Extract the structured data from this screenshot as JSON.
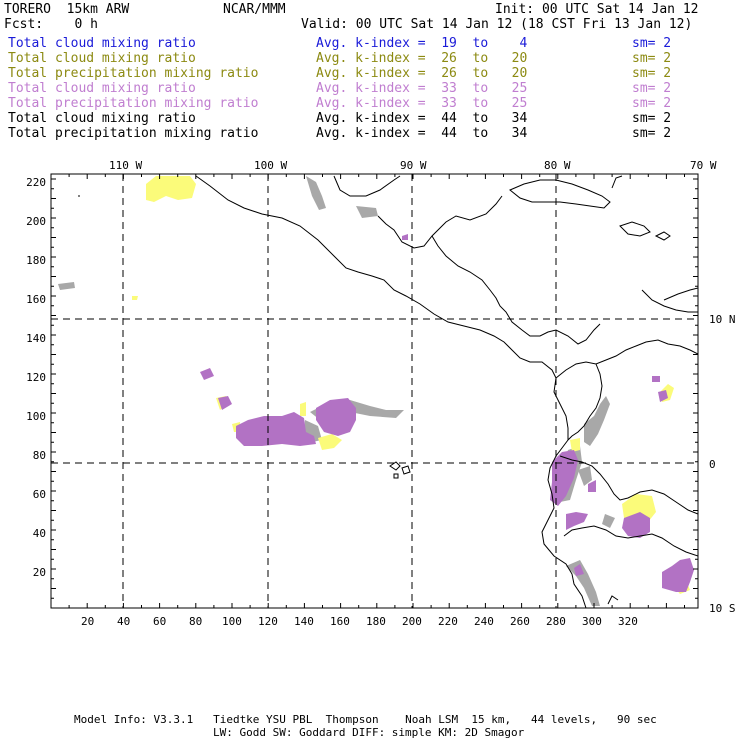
{
  "header": {
    "model": "TORERO  15km ARW",
    "center": "NCAR/MMM",
    "init": "Init: 00 UTC Sat 14 Jan 12",
    "fcst": "Fcst:    0 h",
    "valid": "Valid: 00 UTC Sat 14 Jan 12 (18 CST Fri 13 Jan 12)"
  },
  "legend": [
    {
      "name": "Total cloud mixing ratio",
      "kindex": "Avg. k-index =  19  to    4",
      "sm": "sm= 2",
      "color": "#1a1ad8"
    },
    {
      "name": "Total cloud mixing ratio",
      "kindex": "Avg. k-index =  26  to   20",
      "sm": "sm= 2",
      "color": "#8c8a12"
    },
    {
      "name": "Total precipitation mixing ratio",
      "kindex": "Avg. k-index =  26  to   20",
      "sm": "sm= 2",
      "color": "#8c8a12"
    },
    {
      "name": "Total cloud mixing ratio",
      "kindex": "Avg. k-index =  33  to   25",
      "sm": "sm= 2",
      "color": "#c07ed0"
    },
    {
      "name": "Total precipitation mixing ratio",
      "kindex": "Avg. k-index =  33  to   25",
      "sm": "sm= 2",
      "color": "#c07ed0"
    },
    {
      "name": "Total cloud mixing ratio",
      "kindex": "Avg. k-index =  44  to   34",
      "sm": "sm= 2",
      "color": "#000000"
    },
    {
      "name": "Total precipitation mixing ratio",
      "kindex": "Avg. k-index =  44  to   34",
      "sm": "sm= 2",
      "color": "#000000"
    }
  ],
  "axes": {
    "x_ticks": [
      "20",
      "40",
      "60",
      "80",
      "100",
      "120",
      "140",
      "160",
      "180",
      "200",
      "220",
      "240",
      "260",
      "280",
      "300",
      "320"
    ],
    "y_ticks": [
      "20",
      "40",
      "60",
      "80",
      "100",
      "120",
      "140",
      "160",
      "180",
      "200",
      "220"
    ],
    "lon_labels": [
      "110 W",
      "100 W",
      "90 W",
      "80 W",
      "70 W"
    ],
    "lat_labels": [
      "10 N",
      "0",
      "10 S"
    ]
  },
  "colors": {
    "gray": "#a8a8a8",
    "yellow": "#fbfb7a",
    "purple": "#b272c4",
    "coast": "#000000"
  },
  "footer": {
    "line1": "Model Info: V3.3.1   Tiedtke YSU PBL  Thompson    Noah LSM  15 km,   44 levels,   90 sec",
    "line2": "LW: Godd SW: Goddard DIFF: simple KM: 2D Smagor"
  }
}
